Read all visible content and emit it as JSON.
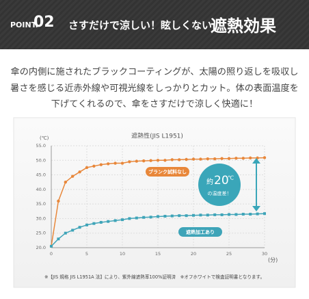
{
  "header": {
    "point": "POINT.",
    "number": "02",
    "title": "さすだけで涼しい！眩しくない！",
    "highlight": "遮熱効果"
  },
  "body": {
    "lines": [
      "傘の内側に施されたブラックコーティングが、太陽の照り返しを吸収し",
      "暑さを感じる近赤外線や可視光線をしっかりとカット。体の表面温度を",
      "下げてくれるので、傘をさすだけで涼しく快適に！"
    ]
  },
  "chart_data": {
    "type": "line",
    "title": "遮熱性(JIS L1951)",
    "y_unit": "(℃)",
    "x_unit": "(分)",
    "x": [
      0,
      1,
      2,
      3,
      4,
      5,
      6,
      7,
      8,
      9,
      10,
      11,
      12,
      13,
      14,
      15,
      16,
      17,
      18,
      19,
      20,
      21,
      22,
      23,
      24,
      25,
      26,
      27,
      28,
      29,
      30
    ],
    "series": [
      {
        "name": "ブランク試料なし",
        "color": "#e8873a",
        "marker": "circle",
        "values": [
          20.5,
          36,
          42.5,
          44.5,
          46,
          47.5,
          48,
          48.5,
          48.8,
          49,
          49,
          49.5,
          49.7,
          49.8,
          49.9,
          50,
          50,
          50.2,
          50.2,
          50.3,
          50.4,
          50.4,
          50.5,
          50.5,
          50.6,
          50.6,
          50.7,
          50.7,
          50.8,
          50.8,
          50.9
        ]
      },
      {
        "name": "遮熱加工あり",
        "color": "#3ea4b8",
        "marker": "square",
        "values": [
          20.5,
          23,
          25,
          26,
          27,
          27.8,
          28.3,
          28.7,
          29,
          29.3,
          29.6,
          30,
          30.2,
          30.4,
          30.5,
          30.7,
          30.8,
          30.9,
          31,
          31,
          31.1,
          31.2,
          31.2,
          31.3,
          31.3,
          31.4,
          31.4,
          31.5,
          31.5,
          31.6,
          31.7
        ]
      }
    ],
    "xlim": [
      0,
      30
    ],
    "xticks": [
      0,
      5,
      10,
      15,
      20,
      25,
      30
    ],
    "ylim": [
      20,
      55
    ],
    "yticks": [
      {
        "value": 20,
        "label": "20.0"
      },
      {
        "value": 25,
        "label": "25.0"
      },
      {
        "value": 30,
        "label": "30.0"
      },
      {
        "value": 35,
        "label": "35.0"
      },
      {
        "value": 40,
        "label": "40.0"
      },
      {
        "value": 45,
        "label": "45.0"
      },
      {
        "value": 50,
        "label": "50.0"
      },
      {
        "value": 55,
        "label": "55.0"
      }
    ],
    "grid": true,
    "annotation": {
      "prefix": "約",
      "number": "20",
      "unit": "℃",
      "suffix": "の温度差！"
    }
  },
  "footnote": "※【JIS 規格 JIS L1951A 法】により、紫外線遮熱率100%証明済　※オフホワイトで検査証明書となります。"
}
